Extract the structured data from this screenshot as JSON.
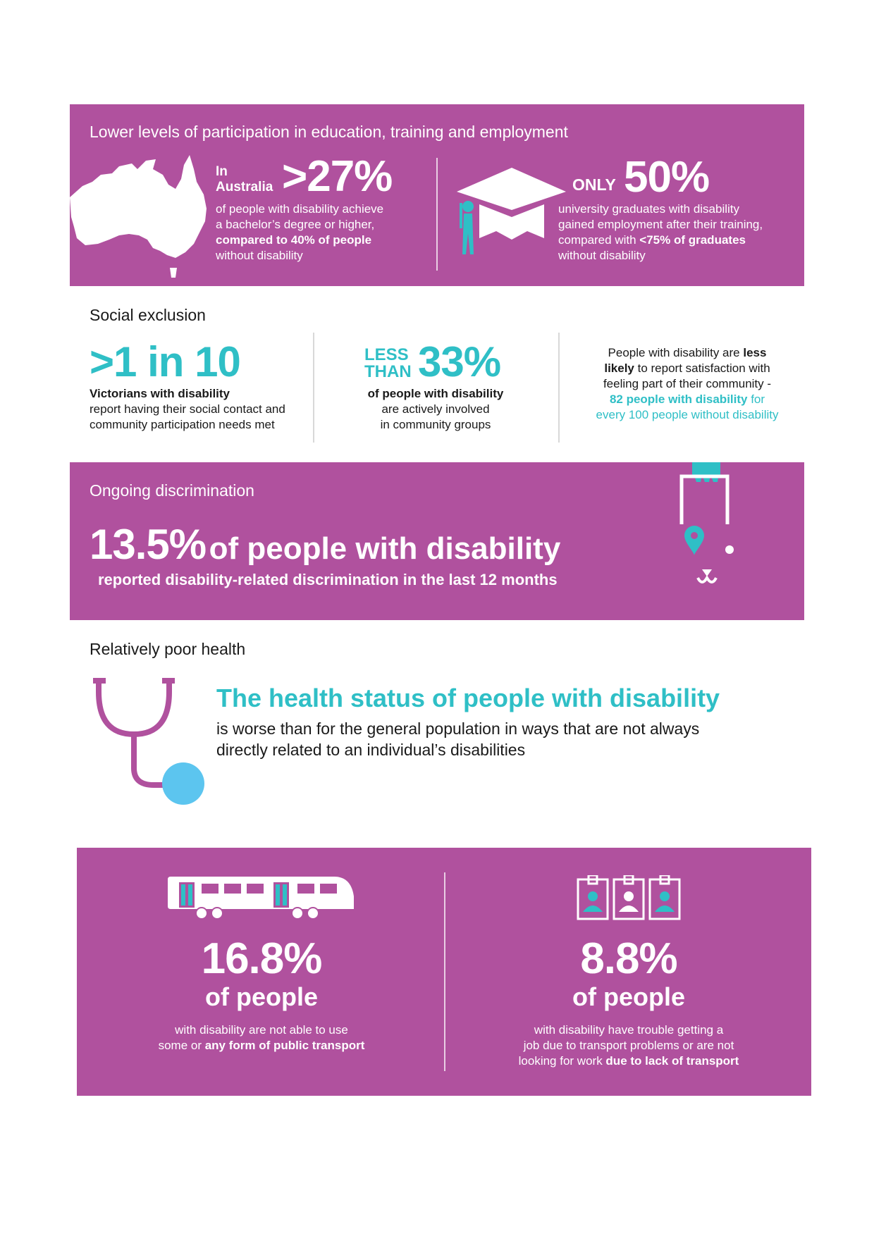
{
  "education": {
    "title": "Lower levels of participation in education, training and employment",
    "left": {
      "prefix_line1": "In",
      "prefix_line2": "Australia",
      "stat": ">27%",
      "text1": "of people with disability achieve",
      "text2": "a bachelor’s degree or higher,",
      "text3_bold": "compared to 40% of people",
      "text4": "without disability"
    },
    "right": {
      "prefix": "ONLY",
      "stat": "50%",
      "text1": "university graduates with disability",
      "text2": "gained employment after their training,",
      "text3": "compared with ",
      "text3_bold": "<75% of graduates",
      "text4": "without disability"
    }
  },
  "social": {
    "title": "Social exclusion",
    "col1": {
      "stat": ">1 in 10",
      "bold": "Victorians with disability",
      "text1": "report having their social contact and",
      "text2": "community participation needs met"
    },
    "col2": {
      "prefix1": "LESS",
      "prefix2": "THAN",
      "stat": "33%",
      "bold": "of people with disability",
      "text1": "are actively involved",
      "text2": "in community groups"
    },
    "col3": {
      "t1": "People with disability are ",
      "t1_bold": "less",
      "t2_bold": "likely",
      "t2": " to report satisfaction with",
      "t3": "feeling part of their community -",
      "t4_bold": "82 people with disability",
      "t4": " for",
      "t5": "every 100 people without disability"
    }
  },
  "discrimination": {
    "title": "Ongoing discrimination",
    "stat": "13.5%",
    "stat_rest": "of people with disability",
    "subtext": "reported disability-related discrimination in the last 12 months"
  },
  "health": {
    "title": "Relatively poor health",
    "headline": "The health status of people with disability",
    "text1": "is worse than for the general population in ways that are not always",
    "text2": "directly related to an individual’s disabilities"
  },
  "transport": {
    "left": {
      "stat": "16.8%",
      "sub": "of people",
      "text1": "with disability are not able to use",
      "text2": "some or ",
      "text2_bold": "any form of public transport"
    },
    "right": {
      "stat": "8.8%",
      "sub": "of people",
      "text1": "with disability have trouble getting a",
      "text2": "job due to transport problems or are not",
      "text3": "looking for work ",
      "text3_bold": "due to lack of transport"
    }
  },
  "colors": {
    "panel": "#b0519e",
    "teal": "#2fbfc6",
    "light_blue": "#5cc5ef"
  },
  "icons": [
    "australia-map-icon",
    "graduation-cap-icon",
    "graduate-person-icon",
    "guide-dog-icon",
    "stethoscope-icon",
    "train-icon",
    "id-badge-icon"
  ]
}
